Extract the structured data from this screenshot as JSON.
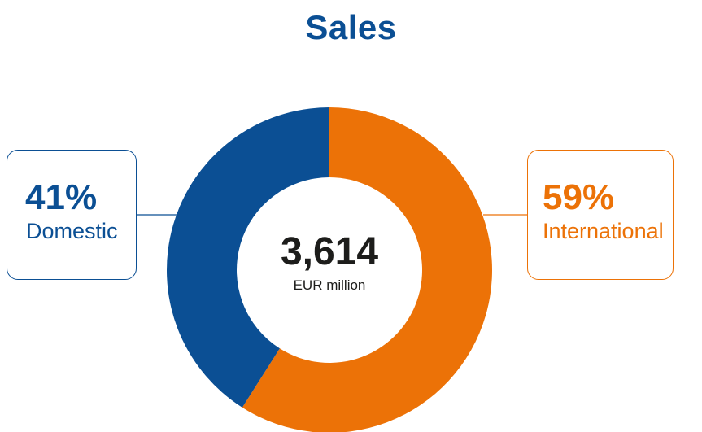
{
  "title": "Sales",
  "colors": {
    "domestic": "#0b4f94",
    "international": "#ec7207"
  },
  "center": {
    "value": "3,614",
    "unit": "EUR million"
  },
  "callouts": {
    "domestic": {
      "percent": "41%",
      "label": "Domestic"
    },
    "international": {
      "percent": "59%",
      "label": "International"
    }
  },
  "chart_data": {
    "type": "pie",
    "title": "Sales",
    "total": 3614,
    "unit": "EUR million",
    "categories": [
      "International",
      "Domestic"
    ],
    "values": [
      59,
      41
    ]
  }
}
